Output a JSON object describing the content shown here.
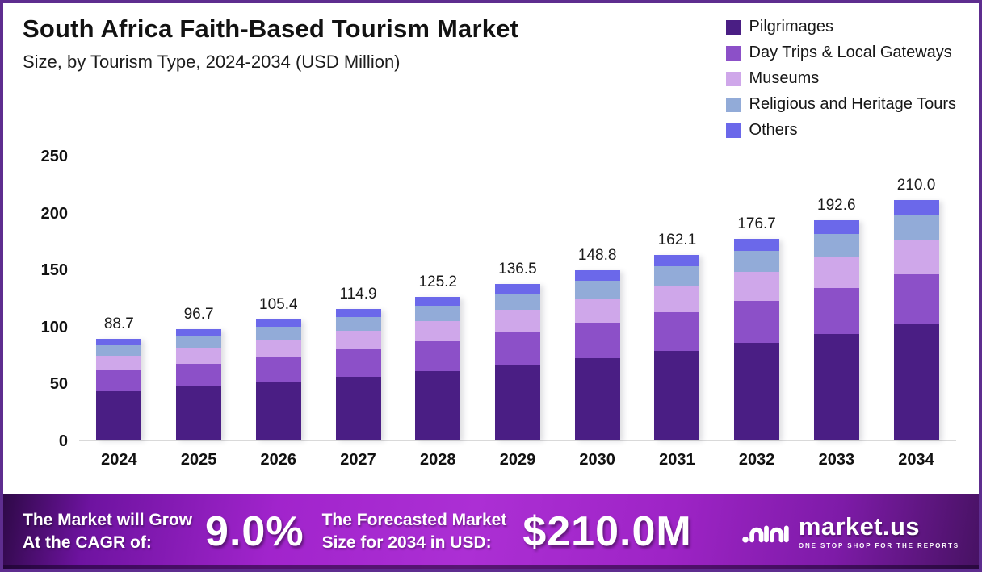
{
  "header": {
    "title": "South Africa Faith-Based Tourism Market",
    "subtitle": "Size, by Tourism Type, 2024-2034 (USD Million)"
  },
  "chart_data": {
    "type": "bar",
    "stacked": true,
    "categories": [
      "2024",
      "2025",
      "2026",
      "2027",
      "2028",
      "2029",
      "2030",
      "2031",
      "2032",
      "2033",
      "2034"
    ],
    "totals": [
      88.7,
      96.7,
      105.4,
      114.9,
      125.2,
      136.5,
      148.8,
      162.1,
      176.7,
      192.6,
      210.0
    ],
    "series": [
      {
        "name": "Pilgrimages",
        "color": "#4A1E84",
        "values": [
          42.8,
          46.6,
          50.8,
          55.4,
          60.4,
          65.8,
          71.7,
          78.1,
          85.0,
          92.9,
          101.2
        ]
      },
      {
        "name": "Day Trips & Local Gateways",
        "color": "#8C50C8",
        "values": [
          18.4,
          20.1,
          21.9,
          23.9,
          26.0,
          28.4,
          31.0,
          33.7,
          36.8,
          40.1,
          43.7
        ]
      },
      {
        "name": "Museums",
        "color": "#CFA7EA",
        "values": [
          12.7,
          13.8,
          15.1,
          16.4,
          17.9,
          19.5,
          21.3,
          23.2,
          25.3,
          27.5,
          30.0
        ]
      },
      {
        "name": "Religious and Heritage Tours",
        "color": "#92ABD8",
        "values": [
          9.3,
          10.2,
          11.1,
          12.1,
          13.1,
          14.3,
          15.6,
          17.0,
          18.6,
          20.2,
          22.1
        ]
      },
      {
        "name": "Others",
        "color": "#6B68EA",
        "values": [
          5.5,
          6.0,
          6.5,
          7.1,
          7.8,
          8.5,
          9.2,
          10.1,
          11.0,
          11.9,
          13.0
        ]
      }
    ],
    "title": "South Africa Faith-Based Tourism Market Size, by Tourism Type, 2024-2034 (USD Million)",
    "xlabel": "",
    "ylabel": "",
    "ylim": [
      0,
      250
    ],
    "yticks": [
      0,
      50,
      100,
      150,
      200,
      250
    ],
    "grid": false,
    "legend_position": "top-right",
    "value_labels": "total above each bar, one decimal"
  },
  "banner": {
    "cagr_label_line1": "The Market will Grow",
    "cagr_label_line2": "At the CAGR of:",
    "cagr_value": "9.0%",
    "forecast_label_line1": "The Forecasted Market",
    "forecast_label_line2": "Size for 2034 in USD:",
    "forecast_value": "$210.0M",
    "logo_name": "market.us",
    "logo_tagline": "ONE STOP SHOP FOR THE REPORTS"
  },
  "colors": {
    "page_border": "#5E2D8F",
    "banner_gradient_mid": "#A82CD1",
    "banner_gradient_edge": "#2E0947",
    "baseline": "#D9D9D9",
    "text": "#121212"
  }
}
